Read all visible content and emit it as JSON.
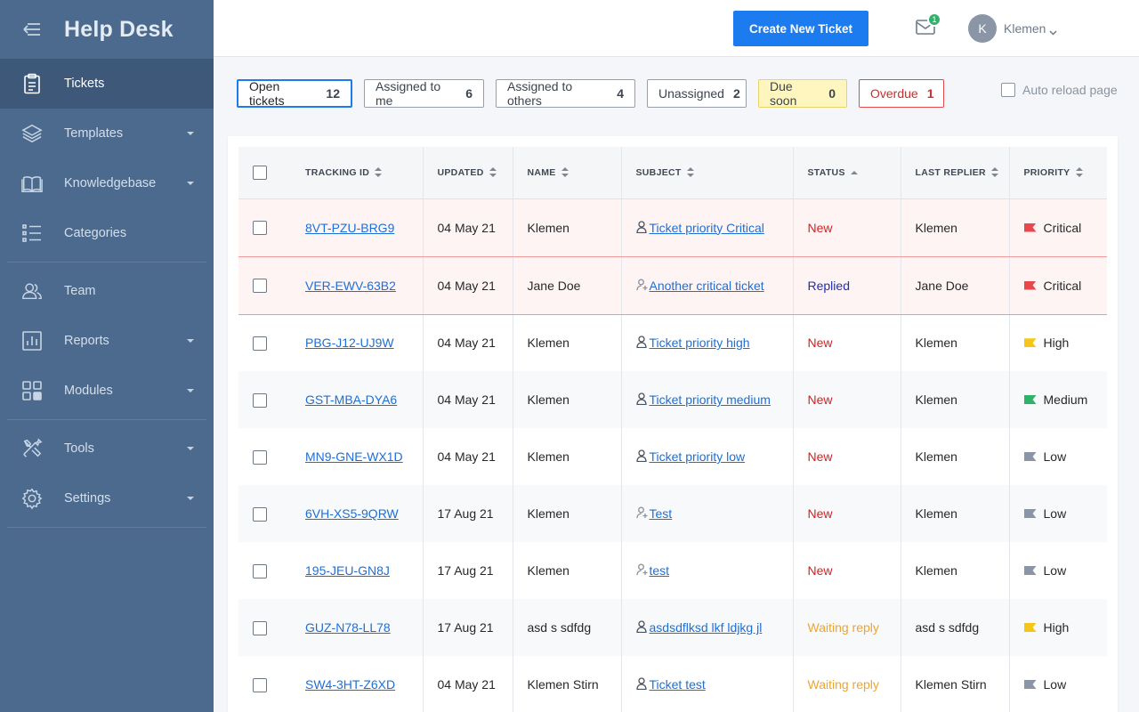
{
  "sidebar": {
    "brand": "Help Desk",
    "items": [
      {
        "label": "Tickets",
        "icon": "clipboard-icon"
      },
      {
        "label": "Templates",
        "icon": "layers-icon"
      },
      {
        "label": "Knowledgebase",
        "icon": "book-icon"
      },
      {
        "label": "Categories",
        "icon": "list-icon"
      },
      {
        "label": "Team",
        "icon": "users-icon"
      },
      {
        "label": "Reports",
        "icon": "chart-icon"
      },
      {
        "label": "Modules",
        "icon": "modules-icon"
      },
      {
        "label": "Tools",
        "icon": "tools-icon"
      },
      {
        "label": "Settings",
        "icon": "gear-icon"
      }
    ]
  },
  "header": {
    "create_label": "Create New Ticket",
    "mail_badge": "1",
    "avatar_initial": "K",
    "user_name": "Klemen"
  },
  "filters": [
    {
      "label": "Open tickets",
      "count": "12"
    },
    {
      "label": "Assigned to me",
      "count": "6"
    },
    {
      "label": "Assigned to others",
      "count": "4"
    },
    {
      "label": "Unassigned",
      "count": "2"
    },
    {
      "label": "Due soon",
      "count": "0"
    },
    {
      "label": "Overdue",
      "count": "1"
    }
  ],
  "auto_reload_label": "Auto reload page",
  "table": {
    "columns": [
      "TRACKING ID",
      "UPDATED",
      "NAME",
      "SUBJECT",
      "STATUS",
      "LAST REPLIER",
      "PRIORITY"
    ],
    "rows": [
      {
        "id": "8VT-PZU-BRG9",
        "updated": "04 May 21",
        "name": "Klemen",
        "subject": "Ticket priority Critical",
        "status": "New",
        "replier": "Klemen",
        "priority": "Critical"
      },
      {
        "id": "VER-EWV-63B2",
        "updated": "04 May 21",
        "name": "Jane Doe",
        "subject": "Another critical ticket",
        "status": "Replied",
        "replier": "Jane Doe",
        "priority": "Critical"
      },
      {
        "id": "PBG-J12-UJ9W",
        "updated": "04 May 21",
        "name": "Klemen",
        "subject": "Ticket priority high",
        "status": "New",
        "replier": "Klemen",
        "priority": "High"
      },
      {
        "id": "GST-MBA-DYA6",
        "updated": "04 May 21",
        "name": "Klemen",
        "subject": "Ticket priority medium",
        "status": "New",
        "replier": "Klemen",
        "priority": "Medium"
      },
      {
        "id": "MN9-GNE-WX1D",
        "updated": "04 May 21",
        "name": "Klemen",
        "subject": "Ticket priority low",
        "status": "New",
        "replier": "Klemen",
        "priority": "Low"
      },
      {
        "id": "6VH-XS5-9QRW",
        "updated": "17 Aug 21",
        "name": "Klemen",
        "subject": "Test",
        "status": "New",
        "replier": "Klemen",
        "priority": "Low"
      },
      {
        "id": "195-JEU-GN8J",
        "updated": "17 Aug 21",
        "name": "Klemen",
        "subject": "test",
        "status": "New",
        "replier": "Klemen",
        "priority": "Low"
      },
      {
        "id": "GUZ-N78-LL78",
        "updated": "17 Aug 21",
        "name": "asd s sdfdg",
        "subject": "asdsdflksd lkf ldjkg jl",
        "status": "Waiting reply",
        "replier": "asd s sdfdg",
        "priority": "High"
      },
      {
        "id": "SW4-3HT-Z6XD",
        "updated": "04 May 21",
        "name": "Klemen Stirn",
        "subject": "Ticket test",
        "status": "Waiting reply",
        "replier": "Klemen Stirn",
        "priority": "Low"
      }
    ]
  },
  "colors": {
    "sidebar": "#4b6a8e",
    "accent": "#1d7bf0",
    "critical": "#e8474e",
    "high": "#f5c518",
    "medium": "#2fb36b",
    "low": "#8a96a6"
  }
}
